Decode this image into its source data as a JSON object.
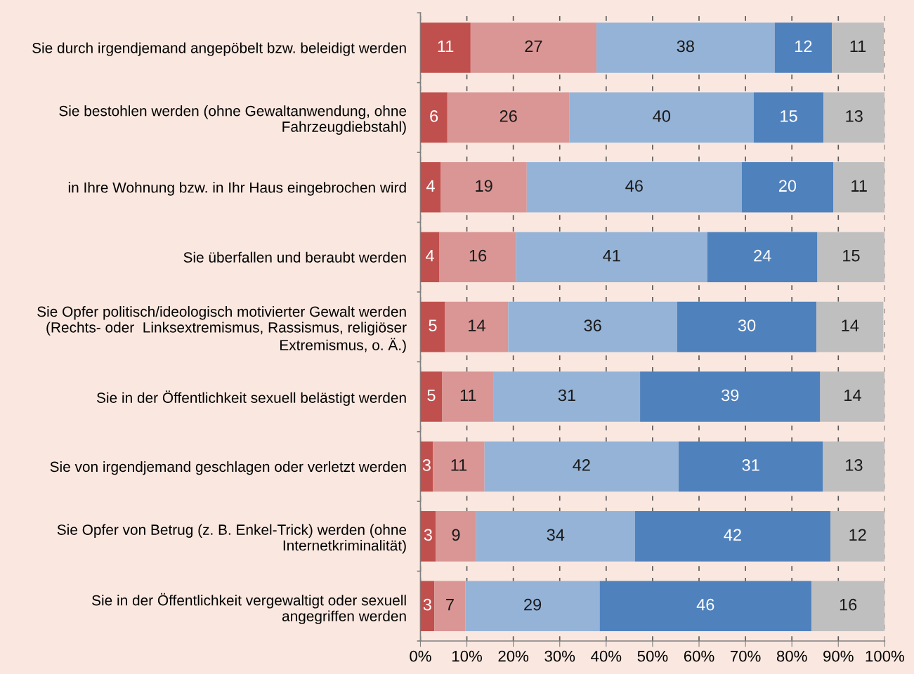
{
  "chart_data": {
    "type": "bar",
    "orientation": "horizontal",
    "stacked": true,
    "categories": [
      "Sie durch irgendjemand angepöbelt bzw. beleidigt werden",
      "Sie bestohlen werden (ohne Gewaltanwendung, ohne\nFahrzeugdiebstahl)",
      "in Ihre Wohnung bzw. in Ihr Haus eingebrochen wird",
      "Sie überfallen und beraubt werden",
      "Sie Opfer politisch/ideologisch motivierter Gewalt werden\n(Rechts- oder  Linksextremismus, Rassismus, religiöser\nExtremismus, o. Ä.)",
      "Sie in der Öffentlichkeit sexuell belästigt werden",
      "Sie von irgendjemand geschlagen oder verletzt werden",
      "Sie Opfer von Betrug (z. B. Enkel-Trick) werden (ohne\nInternetkriminalität)",
      "Sie in der Öffentlichkeit vergewaltigt oder sexuell\nangegriffen werden"
    ],
    "series": [
      {
        "color": "#c0504d",
        "values": [
          10.8,
          5.8,
          4.4,
          4.1,
          5.3,
          4.7,
          2.7,
          3.3,
          3.0
        ],
        "value_labels": [
          "11",
          "6",
          "4",
          "4",
          "5",
          "5",
          "3",
          "3",
          "3"
        ]
      },
      {
        "color": "#d99694",
        "values": [
          27.1,
          26.3,
          18.5,
          16.5,
          13.6,
          11.1,
          11.1,
          8.7,
          6.7
        ],
        "value_labels": [
          "27",
          "26",
          "19",
          "16",
          "14",
          "11",
          "11",
          "9",
          "7"
        ]
      },
      {
        "color": "#95b3d7",
        "values": [
          38.4,
          39.7,
          46.3,
          41.2,
          36.4,
          31.5,
          41.8,
          34.2,
          28.9
        ],
        "value_labels": [
          "38",
          "40",
          "46",
          "41",
          "36",
          "31",
          "42",
          "34",
          "29"
        ]
      },
      {
        "color": "#4f81bd",
        "values": [
          12.3,
          15.0,
          19.7,
          23.7,
          30.0,
          38.8,
          31.1,
          42.1,
          45.6
        ],
        "value_labels": [
          "12",
          "15",
          "20",
          "24",
          "30",
          "39",
          "31",
          "42",
          "46"
        ]
      },
      {
        "color": "#bfbfbf",
        "values": [
          11.2,
          13.2,
          11.1,
          14.5,
          14.4,
          13.9,
          13.3,
          11.7,
          15.8
        ],
        "value_labels": [
          "11",
          "13",
          "11",
          "15",
          "14",
          "14",
          "13",
          "12",
          "16"
        ]
      }
    ],
    "xlim": [
      0,
      100
    ],
    "xticks": [
      {
        "value": 0,
        "label": "0%"
      },
      {
        "value": 10,
        "label": "10%"
      },
      {
        "value": 20,
        "label": "20%"
      },
      {
        "value": 30,
        "label": "30%"
      },
      {
        "value": 40,
        "label": "40%"
      },
      {
        "value": 50,
        "label": "50%"
      },
      {
        "value": 60,
        "label": "60%"
      },
      {
        "value": 70,
        "label": "70%"
      },
      {
        "value": 80,
        "label": "80%"
      },
      {
        "value": 90,
        "label": "90%"
      },
      {
        "value": 100,
        "label": "100%"
      }
    ],
    "grid": "x",
    "legend": false
  }
}
